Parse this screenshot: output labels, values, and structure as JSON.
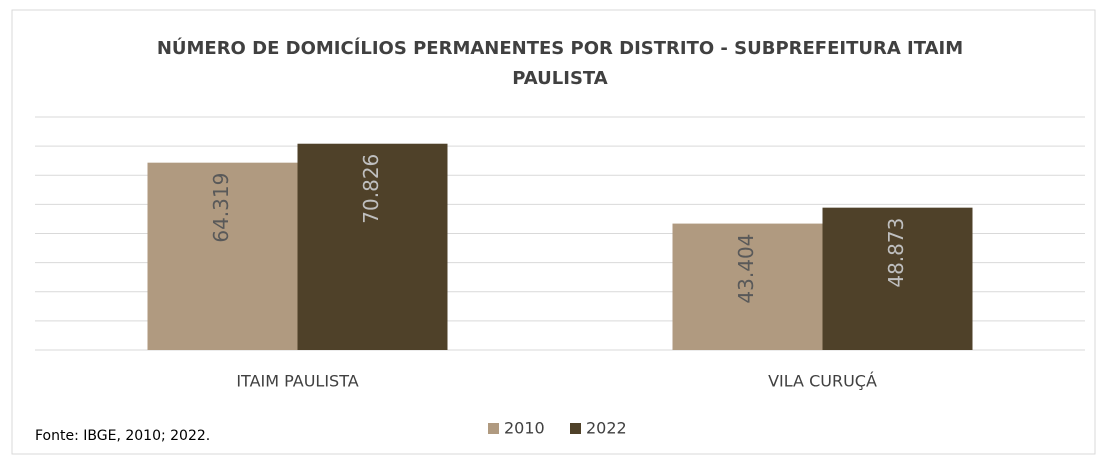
{
  "chart_data": {
    "type": "bar",
    "title": "NÚMERO DE DOMICÍLIOS PERMANENTES POR DISTRITO - SUBPREFEITURA ITAIM PAULISTA",
    "categories": [
      "ITAIM PAULISTA",
      "VILA CURUÇÁ"
    ],
    "series": [
      {
        "name": "2010",
        "color": "#b09a80",
        "values": [
          64319,
          43404
        ],
        "value_labels": [
          "64.319",
          "43.404"
        ]
      },
      {
        "name": "2022",
        "color": "#4f4129",
        "values": [
          70826,
          48873
        ],
        "value_labels": [
          "70.826",
          "48.873"
        ]
      }
    ],
    "ylim": [
      0,
      80000
    ],
    "yticks": [
      0,
      10000,
      20000,
      30000,
      40000,
      50000,
      60000,
      70000,
      80000
    ],
    "grid": true,
    "legend": "bottom",
    "source": "Fonte: IBGE, 2010; 2022."
  }
}
